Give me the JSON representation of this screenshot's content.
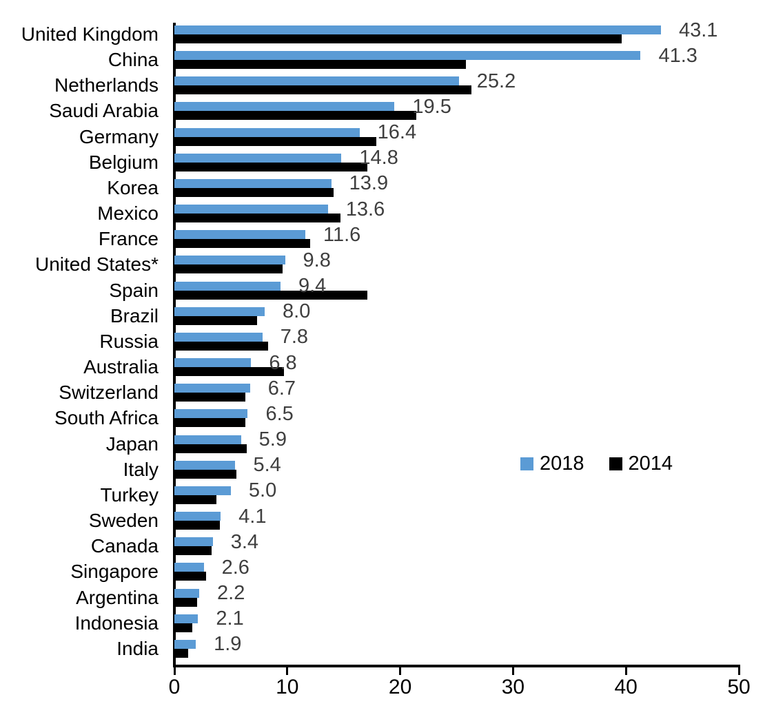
{
  "chart_data": {
    "type": "bar",
    "orientation": "horizontal",
    "title": "",
    "categories": [
      "United Kingdom",
      "China",
      "Netherlands",
      "Saudi Arabia",
      "Germany",
      "Belgium",
      "Korea",
      "Mexico",
      "France",
      "United States*",
      "Spain",
      "Brazil",
      "Russia",
      "Australia",
      "Switzerland",
      "South Africa",
      "Japan",
      "Italy",
      "Turkey",
      "Sweden",
      "Canada",
      "Singapore",
      "Argentina",
      "Indonesia",
      "India"
    ],
    "series": [
      {
        "name": "2018",
        "color": "#5B9BD5",
        "values": [
          43.1,
          41.3,
          25.2,
          19.5,
          16.4,
          14.8,
          13.9,
          13.6,
          11.6,
          9.8,
          9.4,
          8.0,
          7.8,
          6.8,
          6.7,
          6.5,
          5.9,
          5.4,
          5.0,
          4.1,
          3.4,
          2.6,
          2.2,
          2.1,
          1.9
        ]
      },
      {
        "name": "2014",
        "color": "#000000",
        "values": [
          39.6,
          25.8,
          26.3,
          21.4,
          17.9,
          17.1,
          14.1,
          14.7,
          12.0,
          9.6,
          17.1,
          7.3,
          8.3,
          9.7,
          6.3,
          6.3,
          6.4,
          5.5,
          3.7,
          4.0,
          3.3,
          2.8,
          2.0,
          1.6,
          1.2
        ]
      }
    ],
    "data_labels_series": "2018",
    "xlabel": "",
    "ylabel": "",
    "xlim": [
      0,
      50
    ],
    "x_ticks": [
      0,
      10,
      20,
      30,
      40,
      50
    ],
    "grid": false,
    "legend_position": "middle-right",
    "value_label_color": "#3F3F3F",
    "axis_color": "#000000"
  }
}
